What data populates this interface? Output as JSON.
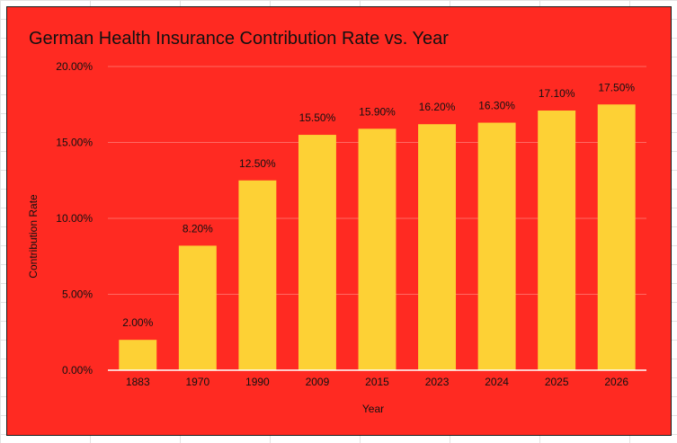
{
  "chart_data": {
    "type": "bar",
    "title": "German Health Insurance Contribution Rate vs. Year",
    "xlabel": "Year",
    "ylabel": "Contribution Rate",
    "categories": [
      "1883",
      "1970",
      "1990",
      "2009",
      "2015",
      "2023",
      "2024",
      "2025",
      "2026"
    ],
    "values": [
      2.0,
      8.2,
      12.5,
      15.5,
      15.9,
      16.2,
      16.3,
      17.1,
      17.5
    ],
    "data_labels": [
      "2.00%",
      "8.20%",
      "12.50%",
      "15.50%",
      "15.90%",
      "16.20%",
      "16.30%",
      "17.10%",
      "17.50%"
    ],
    "ylim": [
      0,
      20
    ],
    "yticks": [
      0,
      5,
      10,
      15,
      20
    ],
    "ytick_labels": [
      "0.00%",
      "5.00%",
      "10.00%",
      "15.00%",
      "20.00%"
    ],
    "grid": true,
    "legend": "none",
    "colors": {
      "background": "#ff2a22",
      "bar": "#fdd135",
      "gridline": "#ff6a63",
      "axis": "#ffffff"
    }
  }
}
